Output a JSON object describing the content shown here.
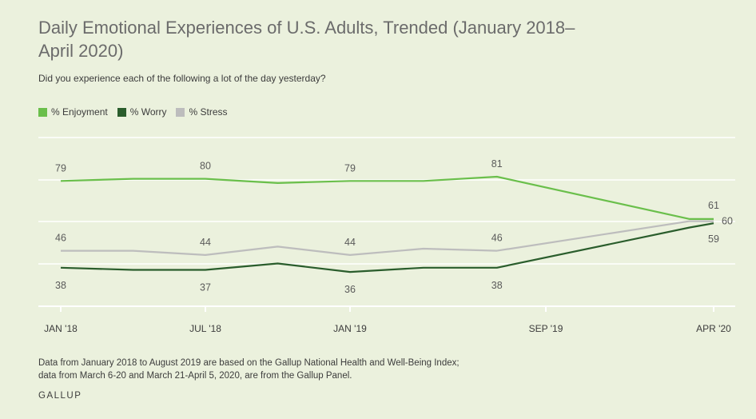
{
  "header": {
    "title": "Daily Emotional Experiences of U.S. Adults, Trended (January 2018–April 2020)",
    "subtitle": "Did you experience each of the following a lot of the day yesterday?"
  },
  "legend": [
    {
      "label": "% Enjoyment",
      "color": "#6abf4b"
    },
    {
      "label": "% Worry",
      "color": "#2a5d2c"
    },
    {
      "label": "% Stress",
      "color": "#bdbdbd"
    }
  ],
  "footer": {
    "note_line1": "Data from January 2018 to August 2019 are based on the Gallup National Health and Well-Being Index;",
    "note_line2": "data from March 6-20 and March 21-April 5, 2020, are from the Gallup Panel.",
    "brand": "GALLUP"
  },
  "chart_data": {
    "type": "line",
    "x_ticks": [
      "JAN '18",
      "JUL '18",
      "JAN '19",
      "SEP '19",
      "APR '20"
    ],
    "x_tick_dates": [
      "2018-01",
      "2018-07",
      "2019-01",
      "2019-09",
      "2020-04"
    ],
    "series": [
      {
        "name": "% Enjoyment",
        "color": "#6abf4b",
        "points": [
          {
            "x": "2018-01",
            "y": 79,
            "label": "79"
          },
          {
            "x": "2018-04",
            "y": 80
          },
          {
            "x": "2018-07",
            "y": 80,
            "label": "80"
          },
          {
            "x": "2018-10",
            "y": 78
          },
          {
            "x": "2019-01",
            "y": 79,
            "label": "79"
          },
          {
            "x": "2019-04",
            "y": 79
          },
          {
            "x": "2019-07",
            "y": 81,
            "label": "81"
          },
          {
            "x": "2020-03",
            "y": 61
          },
          {
            "x": "2020-04",
            "y": 61,
            "label": "61"
          }
        ]
      },
      {
        "name": "% Worry",
        "color": "#2a5d2c",
        "points": [
          {
            "x": "2018-01",
            "y": 38,
            "label": "38"
          },
          {
            "x": "2018-04",
            "y": 37
          },
          {
            "x": "2018-07",
            "y": 37,
            "label": "37"
          },
          {
            "x": "2018-10",
            "y": 40
          },
          {
            "x": "2019-01",
            "y": 36,
            "label": "36"
          },
          {
            "x": "2019-04",
            "y": 38
          },
          {
            "x": "2019-07",
            "y": 38,
            "label": "38"
          },
          {
            "x": "2020-03",
            "y": 57
          },
          {
            "x": "2020-04",
            "y": 59,
            "label": "59"
          }
        ]
      },
      {
        "name": "% Stress",
        "color": "#bdbdbd",
        "points": [
          {
            "x": "2018-01",
            "y": 46,
            "label": "46"
          },
          {
            "x": "2018-04",
            "y": 46
          },
          {
            "x": "2018-07",
            "y": 44,
            "label": "44"
          },
          {
            "x": "2018-10",
            "y": 48
          },
          {
            "x": "2019-01",
            "y": 44,
            "label": "44"
          },
          {
            "x": "2019-04",
            "y": 47
          },
          {
            "x": "2019-07",
            "y": 46,
            "label": "46"
          },
          {
            "x": "2020-03",
            "y": 60
          },
          {
            "x": "2020-04",
            "y": 60,
            "label": "60"
          }
        ]
      }
    ],
    "grid": true
  }
}
